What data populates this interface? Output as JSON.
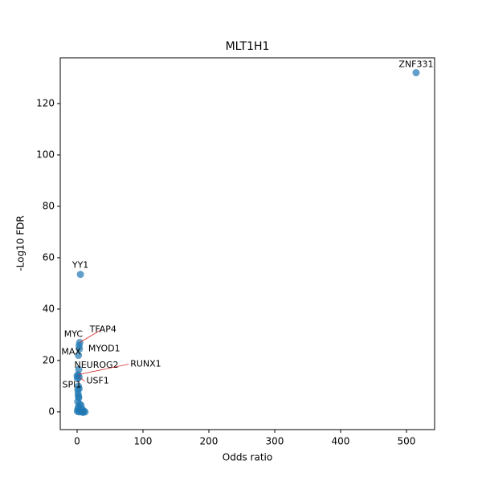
{
  "chart_data": {
    "type": "scatter",
    "title": "MLT1H1",
    "x_label": "Odds ratio",
    "y_label": "-Log10 FDR",
    "xlim": [
      -25.6,
      542.7
    ],
    "ylim": [
      -6.9,
      137.8
    ],
    "xticks": [
      0,
      100,
      200,
      300,
      400,
      500
    ],
    "yticks": [
      0,
      20,
      40,
      60,
      80,
      100,
      120
    ],
    "series": [
      {
        "color": "#1f77b4",
        "x": [
          514.6,
          5,
          4,
          3,
          3.5,
          2,
          2.5,
          1.5,
          3,
          0.5,
          2,
          3,
          1.5,
          2.5,
          1,
          4,
          2,
          6,
          8,
          10,
          12,
          5,
          0.5,
          1,
          3,
          7,
          9,
          1,
          2,
          0
        ],
        "values": [
          132,
          53.5,
          27,
          25.8,
          24.5,
          22,
          16.5,
          14.5,
          13.5,
          13,
          10,
          9,
          7,
          5.5,
          4,
          3,
          2,
          2.5,
          1,
          0.3,
          0,
          0.5,
          0.2,
          1,
          0,
          0,
          -0.2,
          8.5,
          6,
          14
        ],
        "point_labels": [
          "ZNF331",
          "YY1",
          "TFAP4",
          "MYC",
          "MYOD1",
          "MAX",
          "NEUROG2",
          "RUNX1",
          "USF1",
          "SPI1",
          null,
          null,
          null,
          null,
          null,
          null,
          null,
          null,
          null,
          null,
          null,
          null,
          null,
          null,
          null,
          null,
          null,
          null,
          null,
          null
        ]
      }
    ]
  }
}
